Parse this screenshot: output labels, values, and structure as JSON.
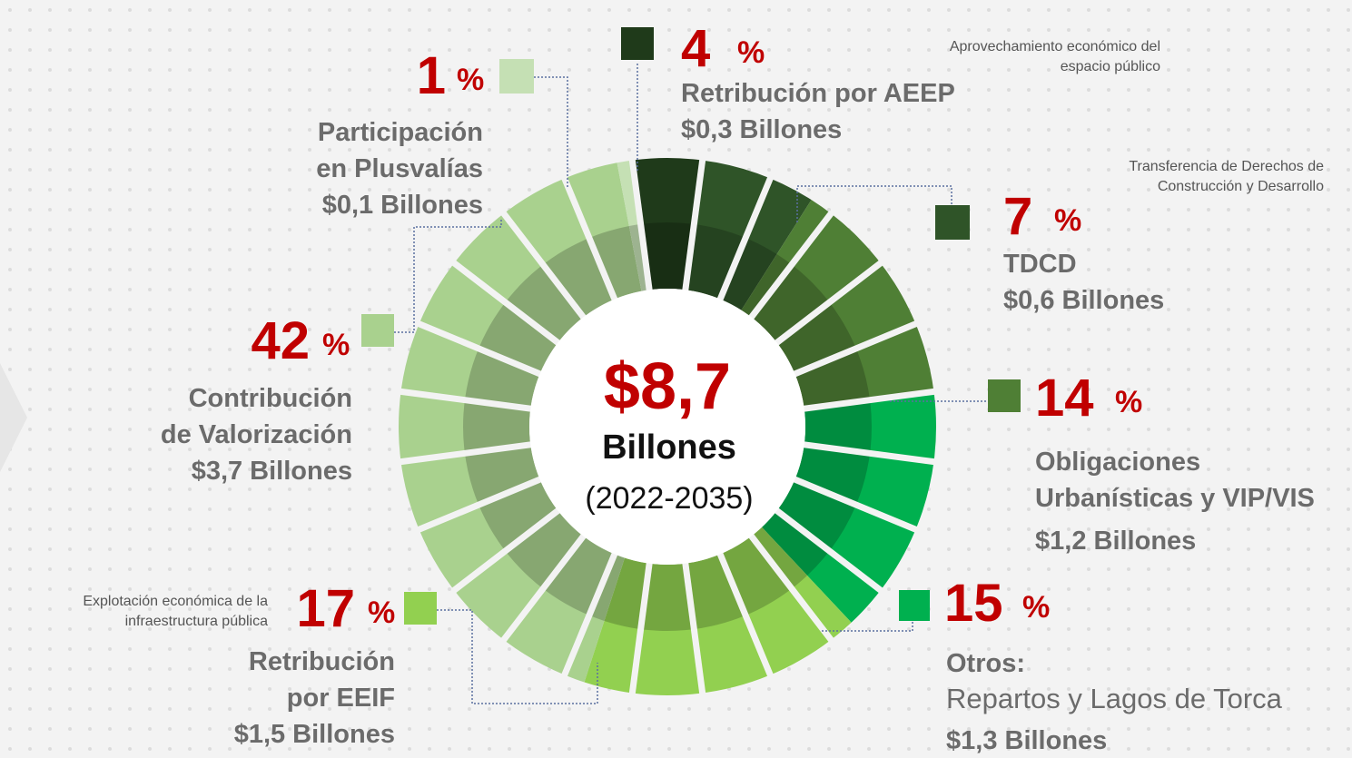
{
  "chart_data": {
    "type": "pie",
    "center_value": "$8,7",
    "center_unit": "Billones",
    "center_period": "(2022-2035)",
    "unit": "%",
    "segments": [
      {
        "name": [
          "Retribución por AEEP"
        ],
        "value": 4,
        "color": "#1f3a1a",
        "amount": "$0,3 Billones",
        "note": [
          "Aprovechamiento económico del",
          "espacio público"
        ]
      },
      {
        "name": [
          "TDCD"
        ],
        "value": 7,
        "color": "#2f5428",
        "amount": "$0,6 Billones",
        "note": [
          "Transferencia de Derechos de",
          "Construcción y Desarrollo"
        ]
      },
      {
        "name": [
          "Obligaciones",
          "Urbanísticas y VIP/VIS"
        ],
        "value": 14,
        "color": "#4f7f35",
        "amount": "$1,2 Billones"
      },
      {
        "name": [
          "Otros:"
        ],
        "detail": "Repartos y Lagos de Torca",
        "value": 15,
        "color": "#00b04f",
        "amount": "$1,3 Billones"
      },
      {
        "name": [
          "Retribución",
          "por EEIF"
        ],
        "value": 17,
        "color": "#92d050",
        "amount": "$1,5 Billones",
        "note": [
          "Explotación económica de la",
          "infraestructura pública"
        ]
      },
      {
        "name": [
          "Contribución",
          "de Valorización"
        ],
        "value": 42,
        "color": "#a9d18e",
        "amount": "$3,7 Billones"
      },
      {
        "name": [
          "Participación",
          "en Plusvalías"
        ],
        "value": 1,
        "color": "#c5e0b4",
        "amount": "$0,1 Billones"
      }
    ]
  }
}
